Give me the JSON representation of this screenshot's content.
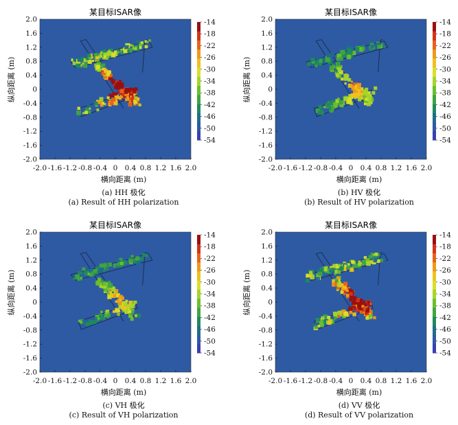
{
  "colors": {
    "background": "#2e5aa3",
    "scale": [
      "#3b3fb3",
      "#2c5aa6",
      "#1f6e8c",
      "#1f8a5c",
      "#3fa53f",
      "#6bbf2e",
      "#a8d42a",
      "#d8e028",
      "#f0c020",
      "#f09a18",
      "#e8641a",
      "#d43418",
      "#9a1010"
    ]
  },
  "chart_data": [
    {
      "type": "heatmap",
      "title": "某目标ISAR像",
      "xlabel": "横向距离 (m)",
      "ylabel": "纵向距离 (m)",
      "xlim": [
        -2.0,
        2.0
      ],
      "ylim": [
        -2.0,
        2.0
      ],
      "xticks": [
        "-2.0",
        "-1.6",
        "-1.2",
        "-0.8",
        "-0.4",
        "0",
        "0.4",
        "0.8",
        "1.2",
        "1.6",
        "2.0"
      ],
      "yticks": [
        "2.0",
        "1.6",
        "1.2",
        "0.8",
        "0.4",
        "0",
        "-0.4",
        "-0.8",
        "-1.2",
        "-1.6",
        "-2.0"
      ],
      "colorbar_ticks": [
        "-14",
        "-18",
        "-22",
        "-26",
        "-30",
        "-34",
        "-38",
        "-42",
        "-46",
        "-50",
        "-54"
      ],
      "colorbar_range": [
        -54,
        -14
      ],
      "caption_cn": "(a) HH 极化",
      "caption_en": "(a) Result of HH polarization",
      "intensity": 1.0
    },
    {
      "type": "heatmap",
      "title": "某目标ISAR像",
      "xlabel": "横向距离 (m)",
      "ylabel": "纵向距离 (m)",
      "xlim": [
        -2.0,
        2.0
      ],
      "ylim": [
        -2.0,
        2.0
      ],
      "xticks": [
        "-2.0",
        "-1.6",
        "-1.2",
        "-0.8",
        "-0.4",
        "0",
        "0.4",
        "0.8",
        "1.2",
        "1.6",
        "2.0"
      ],
      "yticks": [
        "2.0",
        "1.6",
        "1.2",
        "0.8",
        "0.4",
        "0",
        "-0.4",
        "-0.8",
        "-1.2",
        "-1.6",
        "-2.0"
      ],
      "colorbar_ticks": [
        "-14",
        "-18",
        "-22",
        "-26",
        "-30",
        "-34",
        "-38",
        "-42",
        "-46",
        "-50",
        "-54"
      ],
      "colorbar_range": [
        -54,
        -14
      ],
      "caption_cn": "(b) HV 极化",
      "caption_en": "(b) Result of HV polarization",
      "intensity": 0.55
    },
    {
      "type": "heatmap",
      "title": "某目标ISAR像",
      "xlabel": "横向距离 (m)",
      "ylabel": "纵向距离 (m)",
      "xlim": [
        -2.0,
        2.0
      ],
      "ylim": [
        -2.0,
        2.0
      ],
      "xticks": [
        "-2.0",
        "-1.6",
        "-1.2",
        "-0.8",
        "-0.4",
        "0",
        "0.4",
        "0.8",
        "1.2",
        "1.6",
        "2.0"
      ],
      "yticks": [
        "2.0",
        "1.6",
        "1.2",
        "0.8",
        "0.4",
        "0",
        "-0.4",
        "-0.8",
        "-1.2",
        "-1.6",
        "-2.0"
      ],
      "colorbar_ticks": [
        "-14",
        "-18",
        "-22",
        "-26",
        "-30",
        "-34",
        "-38",
        "-42",
        "-46",
        "-50",
        "-54"
      ],
      "colorbar_range": [
        -54,
        -14
      ],
      "caption_cn": "(c) VH 极化",
      "caption_en": "(c) Result of VH polarization",
      "intensity": 0.55
    },
    {
      "type": "heatmap",
      "title": "某目标ISAR像",
      "xlabel": "横向距离 (m)",
      "ylabel": "纵向距离 (m)",
      "xlim": [
        -2.0,
        2.0
      ],
      "ylim": [
        -2.0,
        2.0
      ],
      "xticks": [
        "-2.0",
        "-1.6",
        "-1.2",
        "-0.8",
        "-0.4",
        "0",
        "0.4",
        "0.8",
        "1.2",
        "1.6",
        "2.0"
      ],
      "yticks": [
        "2.0",
        "1.6",
        "1.2",
        "0.8",
        "0.4",
        "0",
        "-0.4",
        "-0.8",
        "-1.2",
        "-1.6",
        "-2.0"
      ],
      "colorbar_ticks": [
        "-14",
        "-18",
        "-22",
        "-26",
        "-30",
        "-34",
        "-38",
        "-42",
        "-46",
        "-50",
        "-54"
      ],
      "colorbar_range": [
        -54,
        -14
      ],
      "caption_cn": "(d) VV 极化",
      "caption_en": "(d) Result of VV polarization",
      "intensity": 1.0
    }
  ]
}
